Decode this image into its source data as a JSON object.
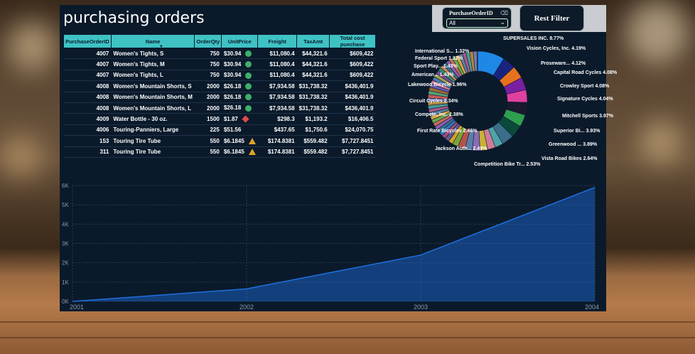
{
  "dashboard": {
    "title": "purchasing orders",
    "slicer": {
      "label": "PurchaseOrderID",
      "value": "All"
    },
    "reset_button": "Rest Filter"
  },
  "table": {
    "columns": [
      "PurchaseOrderID",
      "Name",
      "OrderQty",
      "UnitPrice",
      "Freight",
      "TaxAmt",
      "Total cost puechase"
    ],
    "rows": [
      {
        "id": "4007",
        "name": "Women's Tights, S",
        "qty": "750",
        "price": "$30.94",
        "icon": "green-circle",
        "freight": "$11,080.4",
        "tax": "$44,321.6",
        "total": "$609,422"
      },
      {
        "id": "4007",
        "name": "Women's Tights, M",
        "qty": "750",
        "price": "$30.94",
        "icon": "green-circle",
        "freight": "$11,080.4",
        "tax": "$44,321.6",
        "total": "$609,422"
      },
      {
        "id": "4007",
        "name": "Women's Tights, L",
        "qty": "750",
        "price": "$30.94",
        "icon": "green-circle",
        "freight": "$11,080.4",
        "tax": "$44,321.6",
        "total": "$609,422"
      },
      {
        "id": "4008",
        "name": "Women's Mountain Shorts, S",
        "qty": "2000",
        "price": "$26.18",
        "icon": "green-circle",
        "freight": "$7,934.58",
        "tax": "$31,738.32",
        "total": "$436,401.9"
      },
      {
        "id": "4008",
        "name": "Women's Mountain Shorts, M",
        "qty": "2000",
        "price": "$26.18",
        "icon": "green-circle",
        "freight": "$7,934.58",
        "tax": "$31,738.32",
        "total": "$436,401.9"
      },
      {
        "id": "4008",
        "name": "Women's Mountain Shorts, L",
        "qty": "2000",
        "price": "$26.18",
        "icon": "green-circle",
        "freight": "$7,934.58",
        "tax": "$31,738.32",
        "total": "$436,401.9"
      },
      {
        "id": "4009",
        "name": "Water Bottle - 30 oz.",
        "qty": "1500",
        "price": "$1.87",
        "icon": "red-diamond",
        "freight": "$298.3",
        "tax": "$1,193.2",
        "total": "$16,406.5"
      },
      {
        "id": "4006",
        "name": "Touring-Panniers, Large",
        "qty": "225",
        "price": "$51.56",
        "icon": "",
        "freight": "$437.65",
        "tax": "$1,750.6",
        "total": "$24,070.75"
      },
      {
        "id": "153",
        "name": "Touring Tire Tube",
        "qty": "550",
        "price": "$6.1845",
        "icon": "yellow-triangle",
        "freight": "$174.8381",
        "tax": "$559.482",
        "total": "$7,727.8451"
      },
      {
        "id": "311",
        "name": "Touring Tire Tube",
        "qty": "550",
        "price": "$6.1845",
        "icon": "yellow-triangle",
        "freight": "$174.8381",
        "tax": "$559.482",
        "total": "$7,727.8451"
      }
    ]
  },
  "chart_data": [
    {
      "type": "pie",
      "title": "",
      "slices": [
        {
          "label": "SUPERSALES INC.",
          "value": 8.77,
          "color": "#1e88e5"
        },
        {
          "label": "Vision Cycles, Inc.",
          "value": 4.19,
          "color": "#1a237e"
        },
        {
          "label": "Proseware...",
          "value": 4.12,
          "color": "#e8711e"
        },
        {
          "label": "Capital Road Cycles",
          "value": 4.08,
          "color": "#7b1fa2"
        },
        {
          "label": "Crowley Sport",
          "value": 4.08,
          "color": "#e040a0"
        },
        {
          "label": "Signature Cycles",
          "value": 4.04,
          "color": "#1a1a2e"
        },
        {
          "label": "Mitchell Sports",
          "value": 3.97,
          "color": "#2e9e4f"
        },
        {
          "label": "Superior Bi...",
          "value": 3.93,
          "color": "#0b4a3a"
        },
        {
          "label": "Greenwood ...",
          "value": 3.89,
          "color": "#3b6e8a"
        },
        {
          "label": "Vista Road Bikes",
          "value": 2.64,
          "color": "#4fa3a8"
        },
        {
          "label": "Competition Bike Tr...",
          "value": 2.53,
          "color": "#cf7b9a"
        },
        {
          "label": "Jackson Auth...",
          "value": 2.49,
          "color": "#c9b037"
        },
        {
          "label": "First Rate Bicycles",
          "value": 2.46,
          "color": "#8a6bb5"
        },
        {
          "label": "Compete, Inc.",
          "value": 2.38,
          "color": "#5a7fa8"
        },
        {
          "label": "Circuit Cycles",
          "value": 2.34,
          "color": "#b5534a"
        },
        {
          "label": "Lakewood Bicycle",
          "value": 1.96,
          "color": "#7aa33a"
        },
        {
          "label": "American...",
          "value": 1.43,
          "color": "#d4a22a"
        },
        {
          "label": "Sport Play...",
          "value": 1.43,
          "color": "#5b5b8f"
        },
        {
          "label": "Federal Sport",
          "value": 1.32,
          "color": "#a34a7a"
        },
        {
          "label": "International S...",
          "value": 1.32,
          "color": "#2b7ab8"
        }
      ]
    },
    {
      "type": "area",
      "x": [
        "2001",
        "2002",
        "2003",
        "2004"
      ],
      "series": [
        {
          "values": [
            0,
            650,
            2400,
            5900
          ]
        }
      ],
      "yticks": [
        "0K",
        "1K",
        "2K",
        "3K",
        "4K",
        "5K",
        "6K"
      ],
      "ylim": [
        0,
        6000
      ],
      "color": "#1f6fe0"
    }
  ]
}
